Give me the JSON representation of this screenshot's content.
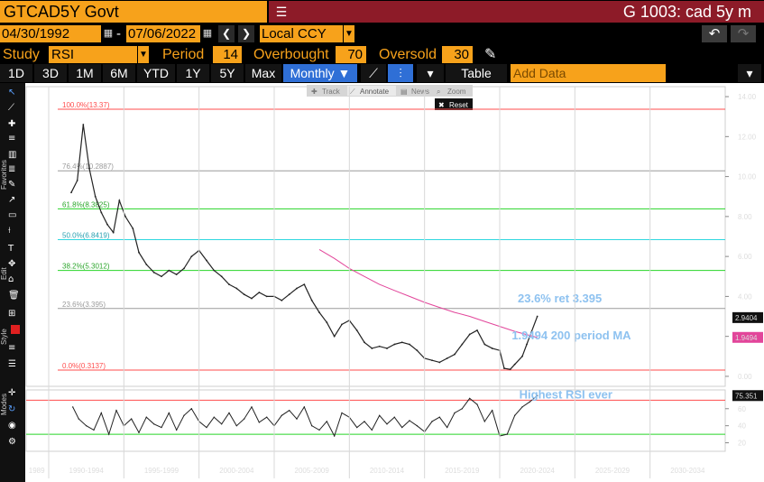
{
  "header": {
    "ticker": "GTCAD5Y Govt",
    "function_title": "G 1003: cad 5y m"
  },
  "dates": {
    "start": "04/30/1992",
    "separator": "-",
    "end": "07/06/2022",
    "currency": "Local CCY"
  },
  "study": {
    "label": "Study",
    "value": "RSI",
    "period_label": "Period",
    "period_value": "14",
    "overbought_label": "Overbought",
    "overbought_value": "70",
    "oversold_label": "Oversold",
    "oversold_value": "30"
  },
  "toolbar": {
    "ranges": [
      "1D",
      "3D",
      "1M",
      "6M",
      "YTD",
      "1Y",
      "5Y",
      "Max"
    ],
    "frequency": "Monthly ▼",
    "table_label": "Table",
    "add_data_placeholder": "Add Data"
  },
  "chart_tools": {
    "track": "Track",
    "annotate": "Annotate",
    "news": "News",
    "zoom": "Zoom",
    "reset": "Reset"
  },
  "sidebar": {
    "favorites": "Favorites",
    "edit": "Edit",
    "style": "Style",
    "modes": "Modes"
  },
  "icons": {
    "back": "undo-icon",
    "forward": "redo-icon",
    "pencil": "pencil-icon"
  },
  "colors": {
    "accent": "#f7a21b",
    "title_bar": "#8d1b28",
    "selected_tab": "#2f6fd6",
    "ma_line": "#e2459a",
    "annotation": "#8ec2f0",
    "fib_100": "#ff4d4d",
    "fib_61": "#28d428",
    "fib_50": "#2fd7e0",
    "fib_38": "#28d428",
    "fib_0": "#ff4d4d",
    "rsi_70": "#ff4d4d",
    "rsi_30": "#28d428"
  },
  "chart_data": [
    {
      "type": "line",
      "series": [
        {
          "name": "GTCAD5Y Govt",
          "x": [
            1991.5,
            1991.9,
            1992.3,
            1992.7,
            1993.1,
            1993.5,
            1993.9,
            1994.3,
            1994.7,
            1995.1,
            1995.6,
            1996.0,
            1996.5,
            1997.0,
            1997.5,
            1998.0,
            1998.5,
            1999.0,
            1999.5,
            2000.0,
            2000.5,
            2001.0,
            2001.5,
            2002.0,
            2002.5,
            2003.0,
            2003.5,
            2004.0,
            2004.5,
            2005.0,
            2005.5,
            2006.0,
            2006.5,
            2007.0,
            2007.5,
            2008.0,
            2008.5,
            2009.0,
            2009.5,
            2010.0,
            2010.5,
            2011.0,
            2011.5,
            2012.0,
            2012.5,
            2013.0,
            2013.5,
            2014.0,
            2014.5,
            2015.0,
            2015.5,
            2016.0,
            2016.5,
            2017.0,
            2017.5,
            2018.0,
            2018.5,
            2019.0,
            2019.5,
            2020.0,
            2020.3,
            2020.7,
            2021.0,
            2021.5,
            2021.8,
            2022.1,
            2022.5
          ],
          "values": [
            9.2,
            9.8,
            12.6,
            10.4,
            9.0,
            8.2,
            7.6,
            7.2,
            8.8,
            8.0,
            7.4,
            6.2,
            5.6,
            5.2,
            5.0,
            5.3,
            5.1,
            5.4,
            6.0,
            6.3,
            5.8,
            5.3,
            5.0,
            4.6,
            4.4,
            4.1,
            3.9,
            4.2,
            4.0,
            4.0,
            3.8,
            4.1,
            4.4,
            4.6,
            3.8,
            3.2,
            2.7,
            2.0,
            2.6,
            2.8,
            2.3,
            1.7,
            1.4,
            1.5,
            1.4,
            1.6,
            1.7,
            1.6,
            1.3,
            0.9,
            0.8,
            0.7,
            0.9,
            1.1,
            1.6,
            2.1,
            2.3,
            1.6,
            1.4,
            1.3,
            0.4,
            0.35,
            0.6,
            1.0,
            1.6,
            2.2,
            3.0
          ]
        },
        {
          "name": "200 period MA",
          "x": [
            2008.0,
            2009.0,
            2010.0,
            2011.0,
            2012.0,
            2013.0,
            2014.0,
            2015.0,
            2016.0,
            2017.0,
            2018.0,
            2019.0,
            2020.0,
            2021.0,
            2022.0,
            2022.5
          ],
          "values": [
            6.35,
            5.9,
            5.4,
            5.0,
            4.6,
            4.3,
            4.0,
            3.7,
            3.45,
            3.2,
            3.0,
            2.75,
            2.5,
            2.25,
            2.05,
            1.9494
          ]
        }
      ],
      "fib_levels": [
        {
          "label": "100.0%(13.37)",
          "value": 13.37
        },
        {
          "label": "76.4%(10.2887)",
          "value": 10.2887
        },
        {
          "label": "61.8%(8.3825)",
          "value": 8.3825
        },
        {
          "label": "50.0%(6.8419)",
          "value": 6.8419
        },
        {
          "label": "38.2%(5.3012)",
          "value": 5.3012
        },
        {
          "label": "23.6%(3.395)",
          "value": 3.395
        },
        {
          "label": "0.0%(0.3137)",
          "value": 0.3137
        }
      ],
      "annotations": [
        {
          "text": "23.6% ret 3.395",
          "value": 3.395
        },
        {
          "text": "1.9494 200 period MA",
          "value": 1.9494
        }
      ],
      "last_price_label": "2.9404",
      "ma_label": "1.9494",
      "x_ticks": [
        "1989",
        "1990-1994",
        "1995-1999",
        "2000-2004",
        "2005-2009",
        "2010-2014",
        "2015-2019",
        "2020-2024",
        "2025-2029",
        "2030-2034"
      ],
      "y_ticks": [
        "14.00",
        "12.00",
        "10.00",
        "8.00",
        "6.00",
        "4.00",
        "2.00",
        "0.00"
      ],
      "ylim": [
        -0.5,
        14.5
      ]
    },
    {
      "type": "line",
      "series": [
        {
          "name": "RSI",
          "x": [
            1991.6,
            1992.0,
            1992.5,
            1993.0,
            1993.5,
            1994.0,
            1994.5,
            1995.0,
            1995.5,
            1996.0,
            1996.5,
            1997.0,
            1997.5,
            1998.0,
            1998.5,
            1999.0,
            1999.5,
            2000.0,
            2000.5,
            2001.0,
            2001.5,
            2002.0,
            2002.5,
            2003.0,
            2003.5,
            2004.0,
            2004.5,
            2005.0,
            2005.5,
            2006.0,
            2006.5,
            2007.0,
            2007.5,
            2008.0,
            2008.5,
            2009.0,
            2009.5,
            2010.0,
            2010.5,
            2011.0,
            2011.5,
            2012.0,
            2012.5,
            2013.0,
            2013.5,
            2014.0,
            2014.5,
            2015.0,
            2015.5,
            2016.0,
            2016.5,
            2017.0,
            2017.5,
            2018.0,
            2018.5,
            2019.0,
            2019.5,
            2020.0,
            2020.5,
            2021.0,
            2021.5,
            2022.0,
            2022.5
          ],
          "values": [
            62,
            48,
            40,
            35,
            55,
            30,
            58,
            40,
            48,
            32,
            50,
            42,
            38,
            55,
            35,
            52,
            60,
            45,
            38,
            50,
            42,
            55,
            40,
            48,
            62,
            44,
            50,
            40,
            52,
            58,
            48,
            62,
            40,
            35,
            45,
            28,
            55,
            50,
            38,
            45,
            35,
            52,
            42,
            50,
            38,
            46,
            40,
            33,
            45,
            50,
            38,
            55,
            60,
            72,
            65,
            45,
            58,
            28,
            30,
            52,
            62,
            68,
            75.351
          ]
        }
      ],
      "levels": [
        70,
        30
      ],
      "annotation": "Highest RSI ever",
      "last_value_label": "75.351",
      "y_ticks": [
        "60",
        "40",
        "20"
      ],
      "ylim": [
        10,
        82
      ]
    }
  ]
}
